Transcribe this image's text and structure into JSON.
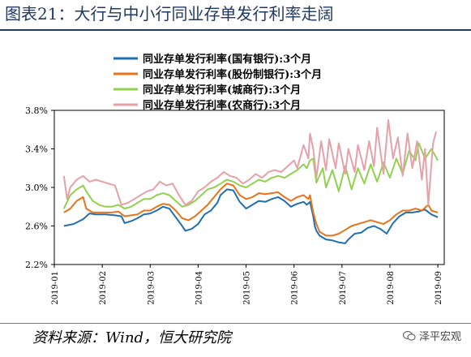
{
  "header": {
    "title": "图表21：大行与中小行同业存单发行利率走阔"
  },
  "footer": {
    "source": "资料来源：Wind，恒大研究院",
    "watermark": "泽平宏观"
  },
  "chart_data": {
    "type": "line",
    "y_tick_labels": [
      "2.2%",
      "2.6%",
      "3.0%",
      "3.4%",
      "3.8%"
    ],
    "ylim": [
      2.2,
      3.8
    ],
    "x_tick_labels": [
      "2019-01",
      "2019-02",
      "2019-03",
      "2019-04",
      "2019-05",
      "2019-06",
      "2019-07",
      "2019-08",
      "2019-09"
    ],
    "grid": false,
    "legend_position": "top-center",
    "series": [
      {
        "name": "同业存单发行利率(国有银行):3个月",
        "color": "#1f6fb2",
        "points": [
          [
            0.3,
            2.6
          ],
          [
            0.6,
            2.62
          ],
          [
            0.9,
            2.67
          ],
          [
            1.1,
            2.73
          ],
          [
            1.3,
            2.72
          ],
          [
            1.6,
            2.72
          ],
          [
            1.9,
            2.71
          ],
          [
            2.1,
            2.7
          ],
          [
            2.2,
            2.63
          ],
          [
            2.4,
            2.65
          ],
          [
            2.6,
            2.68
          ],
          [
            2.8,
            2.72
          ],
          [
            3.0,
            2.73
          ],
          [
            3.2,
            2.76
          ],
          [
            3.4,
            2.8
          ],
          [
            3.6,
            2.78
          ],
          [
            3.8,
            2.69
          ],
          [
            4.0,
            2.6
          ],
          [
            4.1,
            2.55
          ],
          [
            4.3,
            2.57
          ],
          [
            4.5,
            2.62
          ],
          [
            4.7,
            2.72
          ],
          [
            4.9,
            2.76
          ],
          [
            5.1,
            2.84
          ],
          [
            5.2,
            2.92
          ],
          [
            5.4,
            2.98
          ],
          [
            5.6,
            2.97
          ],
          [
            5.8,
            2.85
          ],
          [
            6.0,
            2.78
          ],
          [
            6.2,
            2.82
          ],
          [
            6.4,
            2.86
          ],
          [
            6.6,
            2.85
          ],
          [
            6.8,
            2.88
          ],
          [
            7.0,
            2.9
          ],
          [
            7.2,
            2.86
          ],
          [
            7.4,
            2.8
          ],
          [
            7.6,
            2.83
          ],
          [
            7.8,
            2.85
          ],
          [
            7.9,
            2.82
          ],
          [
            8.0,
            2.85
          ],
          [
            8.1,
            2.7
          ],
          [
            8.15,
            2.6
          ],
          [
            8.2,
            2.55
          ],
          [
            8.3,
            2.5
          ],
          [
            8.5,
            2.46
          ],
          [
            8.7,
            2.45
          ],
          [
            8.9,
            2.43
          ],
          [
            9.1,
            2.42
          ],
          [
            9.2,
            2.46
          ],
          [
            9.4,
            2.52
          ],
          [
            9.6,
            2.53
          ],
          [
            9.8,
            2.58
          ],
          [
            10.0,
            2.6
          ],
          [
            10.2,
            2.57
          ],
          [
            10.4,
            2.52
          ],
          [
            10.6,
            2.63
          ],
          [
            10.8,
            2.7
          ],
          [
            11.0,
            2.74
          ],
          [
            11.2,
            2.74
          ],
          [
            11.4,
            2.75
          ],
          [
            11.6,
            2.77
          ],
          [
            11.8,
            2.72
          ],
          [
            12.0,
            2.69
          ]
        ]
      },
      {
        "name": "同业存单发行利率(股份制银行):3个月",
        "color": "#e8731a",
        "points": [
          [
            0.3,
            2.74
          ],
          [
            0.5,
            2.78
          ],
          [
            0.7,
            2.86
          ],
          [
            0.9,
            2.9
          ],
          [
            1.0,
            2.78
          ],
          [
            1.2,
            2.74
          ],
          [
            1.5,
            2.74
          ],
          [
            1.8,
            2.74
          ],
          [
            2.0,
            2.75
          ],
          [
            2.2,
            2.7
          ],
          [
            2.4,
            2.71
          ],
          [
            2.6,
            2.72
          ],
          [
            2.8,
            2.76
          ],
          [
            3.0,
            2.76
          ],
          [
            3.2,
            2.8
          ],
          [
            3.4,
            2.83
          ],
          [
            3.6,
            2.82
          ],
          [
            3.8,
            2.76
          ],
          [
            4.0,
            2.68
          ],
          [
            4.2,
            2.66
          ],
          [
            4.4,
            2.7
          ],
          [
            4.6,
            2.76
          ],
          [
            4.8,
            2.82
          ],
          [
            5.0,
            2.9
          ],
          [
            5.2,
            2.98
          ],
          [
            5.4,
            3.04
          ],
          [
            5.6,
            3.02
          ],
          [
            5.8,
            2.92
          ],
          [
            6.0,
            2.88
          ],
          [
            6.2,
            2.9
          ],
          [
            6.4,
            2.94
          ],
          [
            6.6,
            2.93
          ],
          [
            6.8,
            2.94
          ],
          [
            7.0,
            2.95
          ],
          [
            7.2,
            2.9
          ],
          [
            7.4,
            2.86
          ],
          [
            7.6,
            2.9
          ],
          [
            7.8,
            2.92
          ],
          [
            7.95,
            2.88
          ],
          [
            8.0,
            2.92
          ],
          [
            8.1,
            2.74
          ],
          [
            8.2,
            2.62
          ],
          [
            8.3,
            2.54
          ],
          [
            8.5,
            2.5
          ],
          [
            8.7,
            2.5
          ],
          [
            8.9,
            2.52
          ],
          [
            9.1,
            2.56
          ],
          [
            9.3,
            2.6
          ],
          [
            9.5,
            2.62
          ],
          [
            9.7,
            2.64
          ],
          [
            9.9,
            2.66
          ],
          [
            10.1,
            2.64
          ],
          [
            10.3,
            2.62
          ],
          [
            10.5,
            2.66
          ],
          [
            10.7,
            2.72
          ],
          [
            10.9,
            2.76
          ],
          [
            11.1,
            2.76
          ],
          [
            11.3,
            2.78
          ],
          [
            11.5,
            2.76
          ],
          [
            11.7,
            2.82
          ],
          [
            11.8,
            2.76
          ],
          [
            12.0,
            2.74
          ]
        ]
      },
      {
        "name": "同业存单发行利率(城商行):3个月",
        "color": "#92d050",
        "points": [
          [
            0.3,
            2.78
          ],
          [
            0.5,
            2.92
          ],
          [
            0.7,
            2.98
          ],
          [
            0.9,
            3.02
          ],
          [
            1.0,
            2.96
          ],
          [
            1.2,
            2.86
          ],
          [
            1.4,
            2.82
          ],
          [
            1.6,
            2.8
          ],
          [
            1.8,
            2.8
          ],
          [
            2.0,
            2.82
          ],
          [
            2.2,
            2.78
          ],
          [
            2.4,
            2.8
          ],
          [
            2.6,
            2.84
          ],
          [
            2.8,
            2.88
          ],
          [
            3.0,
            2.88
          ],
          [
            3.2,
            2.92
          ],
          [
            3.4,
            2.94
          ],
          [
            3.6,
            2.92
          ],
          [
            3.8,
            2.86
          ],
          [
            4.0,
            2.8
          ],
          [
            4.2,
            2.82
          ],
          [
            4.4,
            2.86
          ],
          [
            4.6,
            2.92
          ],
          [
            4.8,
            2.98
          ],
          [
            5.0,
            3.0
          ],
          [
            5.2,
            3.04
          ],
          [
            5.4,
            3.08
          ],
          [
            5.6,
            3.06
          ],
          [
            5.8,
            3.02
          ],
          [
            6.0,
            3.0
          ],
          [
            6.2,
            3.04
          ],
          [
            6.4,
            3.08
          ],
          [
            6.6,
            3.06
          ],
          [
            6.8,
            3.1
          ],
          [
            7.0,
            3.12
          ],
          [
            7.2,
            3.1
          ],
          [
            7.4,
            3.14
          ],
          [
            7.6,
            3.18
          ],
          [
            7.8,
            3.24
          ],
          [
            7.9,
            3.2
          ],
          [
            8.0,
            3.28
          ],
          [
            8.1,
            3.3
          ],
          [
            8.2,
            3.05
          ],
          [
            8.4,
            3.2
          ],
          [
            8.5,
            3.0
          ],
          [
            8.7,
            3.18
          ],
          [
            8.9,
            2.96
          ],
          [
            9.1,
            3.22
          ],
          [
            9.3,
            2.98
          ],
          [
            9.5,
            3.2
          ],
          [
            9.7,
            3.04
          ],
          [
            9.9,
            3.24
          ],
          [
            10.1,
            3.06
          ],
          [
            10.3,
            3.26
          ],
          [
            10.5,
            3.1
          ],
          [
            10.7,
            3.3
          ],
          [
            10.9,
            3.14
          ],
          [
            11.1,
            3.38
          ],
          [
            11.3,
            3.28
          ],
          [
            11.4,
            3.46
          ],
          [
            11.6,
            3.3
          ],
          [
            11.8,
            3.4
          ],
          [
            12.0,
            3.28
          ]
        ]
      },
      {
        "name": "同业存单发行利率(农商行):3个月",
        "color": "#e6a0a8",
        "points": [
          [
            0.3,
            3.12
          ],
          [
            0.4,
            2.88
          ],
          [
            0.5,
            3.0
          ],
          [
            0.7,
            3.08
          ],
          [
            0.9,
            3.12
          ],
          [
            1.1,
            3.06
          ],
          [
            1.3,
            3.08
          ],
          [
            1.5,
            3.06
          ],
          [
            1.7,
            3.04
          ],
          [
            1.9,
            3.02
          ],
          [
            2.1,
            2.82
          ],
          [
            2.3,
            2.84
          ],
          [
            2.5,
            2.88
          ],
          [
            2.7,
            2.92
          ],
          [
            2.9,
            2.96
          ],
          [
            3.1,
            2.98
          ],
          [
            3.3,
            3.06
          ],
          [
            3.5,
            3.02
          ],
          [
            3.7,
            3.04
          ],
          [
            3.9,
            2.92
          ],
          [
            4.1,
            2.82
          ],
          [
            4.3,
            2.86
          ],
          [
            4.5,
            2.96
          ],
          [
            4.7,
            3.0
          ],
          [
            4.9,
            3.06
          ],
          [
            5.1,
            3.1
          ],
          [
            5.3,
            3.16
          ],
          [
            5.5,
            3.12
          ],
          [
            5.7,
            3.1
          ],
          [
            5.9,
            3.04
          ],
          [
            6.1,
            3.08
          ],
          [
            6.3,
            3.14
          ],
          [
            6.5,
            3.1
          ],
          [
            6.7,
            3.16
          ],
          [
            6.9,
            3.18
          ],
          [
            7.1,
            3.16
          ],
          [
            7.3,
            3.22
          ],
          [
            7.5,
            3.28
          ],
          [
            7.6,
            3.2
          ],
          [
            7.8,
            3.44
          ],
          [
            7.95,
            3.3
          ],
          [
            8.0,
            3.56
          ],
          [
            8.1,
            3.4
          ],
          [
            8.2,
            3.1
          ],
          [
            8.35,
            3.48
          ],
          [
            8.5,
            3.18
          ],
          [
            8.6,
            3.5
          ],
          [
            8.8,
            3.2
          ],
          [
            8.9,
            3.46
          ],
          [
            9.1,
            3.14
          ],
          [
            9.2,
            3.4
          ],
          [
            9.4,
            3.16
          ],
          [
            9.5,
            3.44
          ],
          [
            9.7,
            3.18
          ],
          [
            9.85,
            3.48
          ],
          [
            10.0,
            3.22
          ],
          [
            10.1,
            3.62
          ],
          [
            10.3,
            3.14
          ],
          [
            10.45,
            3.7
          ],
          [
            10.6,
            3.3
          ],
          [
            10.75,
            3.52
          ],
          [
            10.9,
            3.12
          ],
          [
            11.05,
            3.56
          ],
          [
            11.2,
            3.2
          ],
          [
            11.35,
            3.48
          ],
          [
            11.5,
            3.08
          ],
          [
            11.6,
            3.4
          ],
          [
            11.7,
            2.82
          ],
          [
            11.85,
            3.46
          ],
          [
            11.95,
            3.58
          ]
        ]
      }
    ]
  }
}
